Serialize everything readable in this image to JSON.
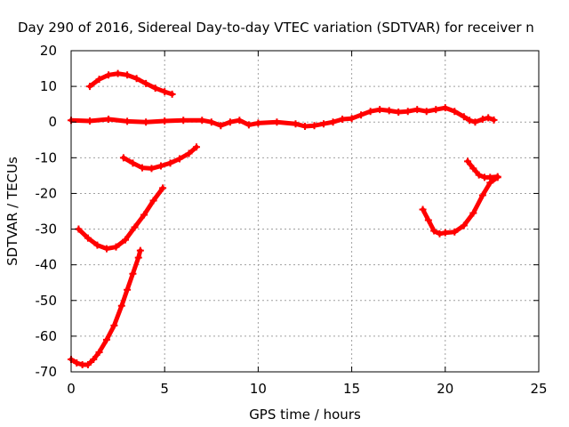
{
  "chart_data": {
    "type": "line",
    "title": "Day 290 of 2016, Sidereal Day-to-day VTEC variation (SDTVAR) for receiver n",
    "xlabel": "GPS time / hours",
    "ylabel": "SDTVAR / TECUs",
    "xlim": [
      0,
      25
    ],
    "ylim": [
      -70,
      20
    ],
    "xticks": [
      0,
      5,
      10,
      15,
      20,
      25
    ],
    "yticks": [
      20,
      10,
      0,
      -10,
      -20,
      -30,
      -40,
      -50,
      -60,
      -70
    ],
    "grid": true,
    "legend": "none",
    "color": "#ff0000",
    "series": [
      {
        "x": [
          0.0,
          1.0,
          2.0,
          3.0,
          4.0,
          5.0,
          6.0,
          7.0,
          7.5,
          8.0,
          8.5,
          9.0,
          9.5,
          10.0,
          11.0,
          12.0,
          12.5,
          13.0,
          13.5,
          14.0,
          14.5,
          15.0,
          15.5,
          16.0,
          16.5,
          17.0,
          17.5,
          18.0,
          18.5,
          19.0,
          19.5,
          20.0,
          20.5,
          21.0,
          21.3,
          21.6,
          22.0,
          22.3,
          22.6
        ],
        "y": [
          0.5,
          0.3,
          0.8,
          0.2,
          0.0,
          0.3,
          0.5,
          0.5,
          0.0,
          -1.0,
          0.0,
          0.5,
          -0.8,
          -0.3,
          0.0,
          -0.5,
          -1.2,
          -1.0,
          -0.5,
          0.0,
          0.8,
          1.0,
          2.0,
          3.0,
          3.5,
          3.2,
          2.8,
          3.0,
          3.5,
          3.0,
          3.5,
          4.0,
          3.0,
          1.5,
          0.5,
          0.0,
          0.8,
          1.2,
          0.6
        ]
      },
      {
        "x": [
          1.0,
          1.5,
          2.0,
          2.5,
          3.0,
          3.5,
          4.0,
          4.5,
          5.0,
          5.4
        ],
        "y": [
          10.0,
          12.0,
          13.2,
          13.6,
          13.2,
          12.2,
          10.8,
          9.5,
          8.5,
          7.8
        ]
      },
      {
        "x": [
          2.8,
          3.3,
          3.8,
          4.3,
          4.8,
          5.3,
          5.8,
          6.3,
          6.7
        ],
        "y": [
          -10.0,
          -11.5,
          -12.8,
          -13.0,
          -12.3,
          -11.5,
          -10.3,
          -8.8,
          -7.0
        ]
      },
      {
        "x": [
          0.4,
          0.9,
          1.4,
          1.9,
          2.4,
          2.9,
          3.4,
          3.9,
          4.4,
          4.9
        ],
        "y": [
          -30.0,
          -32.5,
          -34.5,
          -35.5,
          -35.0,
          -33.0,
          -29.5,
          -26.0,
          -22.0,
          -18.5
        ]
      },
      {
        "x": [
          0.0,
          0.3,
          0.6,
          0.9,
          1.2,
          1.5,
          1.9,
          2.3,
          2.7,
          3.0,
          3.3,
          3.6,
          3.7
        ],
        "y": [
          -66.5,
          -67.5,
          -68.0,
          -68.0,
          -66.5,
          -64.5,
          -61.0,
          -57.0,
          -51.5,
          -47.0,
          -42.5,
          -38.0,
          -36.0
        ]
      },
      {
        "x": [
          18.8,
          19.1,
          19.4,
          19.7,
          20.0,
          20.5,
          21.0,
          21.5,
          22.0,
          22.4,
          22.8
        ],
        "y": [
          -24.5,
          -27.5,
          -30.5,
          -31.3,
          -31.0,
          -30.8,
          -29.0,
          -25.5,
          -20.5,
          -17.0,
          -15.5
        ]
      },
      {
        "x": [
          21.2,
          21.5,
          21.8,
          22.1,
          22.4,
          22.8
        ],
        "y": [
          -11.0,
          -13.0,
          -14.8,
          -15.5,
          -15.5,
          -15.3
        ]
      }
    ]
  }
}
